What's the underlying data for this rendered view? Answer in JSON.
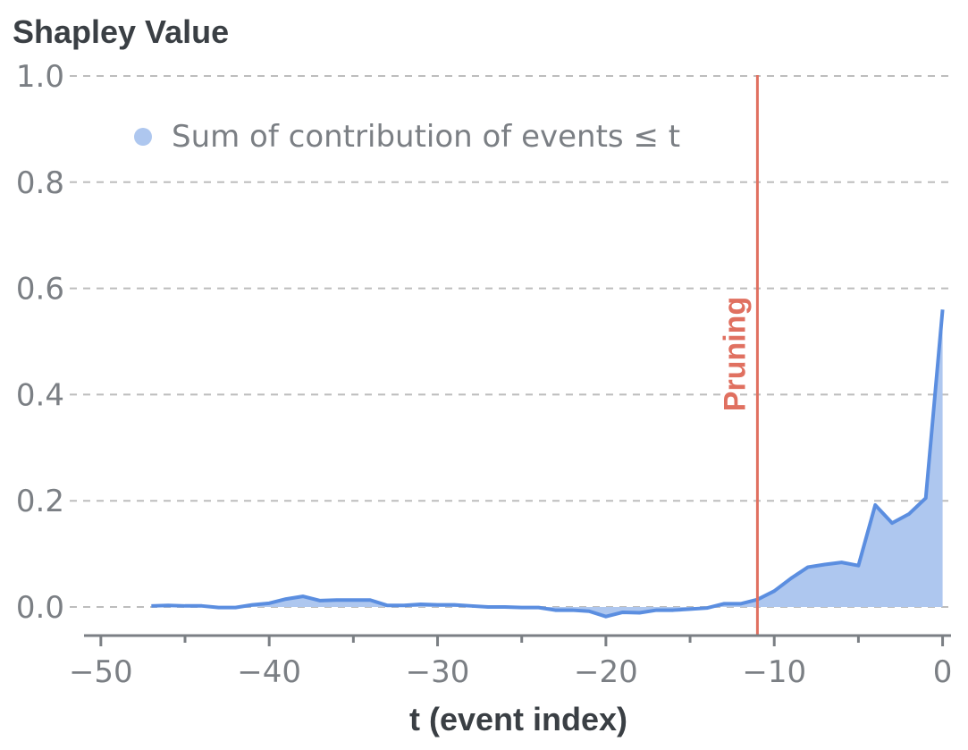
{
  "chart_data": {
    "type": "area",
    "ylabel": "Shapley Value",
    "xlabel": "t (event index)",
    "xlim": [
      -51,
      0.5
    ],
    "ylim": [
      0,
      1.0
    ],
    "xticks": [
      -50,
      -40,
      -30,
      -20,
      -10,
      0
    ],
    "xtick_labels": [
      "−50",
      "−40",
      "−30",
      "−20",
      "−10",
      "0"
    ],
    "yticks": [
      0.0,
      0.2,
      0.4,
      0.6,
      0.8,
      1.0
    ],
    "ytick_labels": [
      "0.0",
      "0.2",
      "0.4",
      "0.6",
      "0.8",
      "1.0"
    ],
    "grid": "horizontal dashed",
    "legend_position": "top-left",
    "colors": {
      "series": "#5b8ee0",
      "fill": "#aec7ef",
      "marker": "#e07060"
    },
    "series": [
      {
        "name": "Sum of contribution of events ≤ t",
        "x": [
          -47,
          -46,
          -45,
          -44,
          -43,
          -42,
          -41,
          -40,
          -39,
          -38,
          -37,
          -36,
          -35,
          -34,
          -33,
          -32,
          -31,
          -30,
          -29,
          -28,
          -27,
          -26,
          -25,
          -24,
          -23,
          -22,
          -21,
          -20,
          -19,
          -18,
          -17,
          -16,
          -15,
          -14,
          -13,
          -12,
          -11,
          -10,
          -9,
          -8,
          -7,
          -6,
          -5,
          -4,
          -3,
          -2,
          -1,
          0
        ],
        "values": [
          0.002,
          0.003,
          0.002,
          0.002,
          -0.001,
          -0.001,
          0.004,
          0.007,
          0.015,
          0.02,
          0.012,
          0.013,
          0.013,
          0.013,
          0.003,
          0.003,
          0.005,
          0.004,
          0.004,
          0.002,
          0.0,
          0.0,
          -0.001,
          -0.001,
          -0.006,
          -0.006,
          -0.008,
          -0.018,
          -0.01,
          -0.011,
          -0.006,
          -0.006,
          -0.004,
          -0.002,
          0.006,
          0.006,
          0.014,
          0.03,
          0.054,
          0.075,
          0.08,
          0.084,
          0.078,
          0.192,
          0.158,
          0.175,
          0.205,
          0.56
        ]
      }
    ],
    "annotations": [
      {
        "type": "vline",
        "x": -11,
        "label": "Pruning"
      }
    ]
  }
}
